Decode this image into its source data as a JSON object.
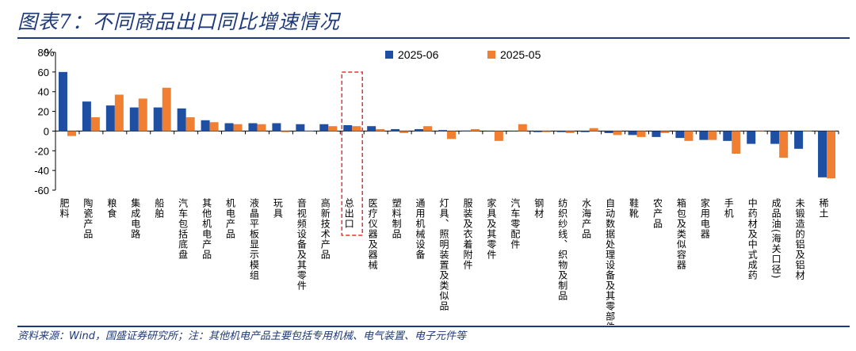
{
  "figure": {
    "title": "图表7：不同商品出口同比增速情况",
    "source_note": "资料来源：Wind，国盛证券研究所；注：其他机电产品主要包括专用机械、电气装置、电子元件等"
  },
  "colors": {
    "series_2025_06": "#1f4fa3",
    "series_2025_05": "#f07f32",
    "highlight_box": "#e8322d",
    "title": "#1f3a7a"
  },
  "chart_data": {
    "type": "bar",
    "ylabel": "%",
    "ylim": [
      -60,
      80
    ],
    "yticks": [
      80,
      60,
      40,
      20,
      0,
      -20,
      -40,
      -60
    ],
    "grid": false,
    "legend_position": "top",
    "highlighted_category": "总出口",
    "categories": [
      "肥料",
      "陶瓷产品",
      "粮食",
      "集成电路",
      "船舶",
      "汽车包括底盘",
      "其他机电产品",
      "机电产品",
      "液晶平板显示模组",
      "玩具",
      "音视频设备及其零件",
      "高新技术产品",
      "总出口",
      "医疗仪器及器械",
      "塑料制品",
      "通用机械设备",
      "灯具、照明装置及类似品",
      "服装及衣着附件",
      "家具及其零件",
      "汽车零配件",
      "钢材",
      "纺织纱线、织物及制品",
      "水海产品",
      "自动数据处理设备及其零部件",
      "鞋靴",
      "农产品",
      "箱包及类似容器",
      "家用电器",
      "手机",
      "中药材及中式成药",
      "成品油(海关口径)",
      "未锻造的铝及铝材",
      "稀土"
    ],
    "series": [
      {
        "name": "2025-06",
        "values": [
          60,
          30,
          26,
          24,
          24,
          23,
          11,
          8,
          8,
          8,
          7,
          7,
          6,
          5,
          2,
          2,
          1,
          0.5,
          -0.5,
          0,
          -1,
          -1,
          -1,
          -2,
          -4,
          -6,
          -7,
          -9,
          -10,
          -13,
          -13,
          -18,
          -47
        ]
      },
      {
        "name": "2025-05",
        "values": [
          -5,
          14,
          37,
          33,
          44,
          14,
          9,
          7,
          7,
          -1,
          0,
          5,
          5,
          2,
          -2,
          5,
          -8,
          2,
          -10,
          7,
          -1,
          -2,
          3,
          -4,
          -6,
          -2,
          -10,
          -9,
          -23,
          0,
          -27,
          0,
          -48
        ]
      }
    ]
  }
}
